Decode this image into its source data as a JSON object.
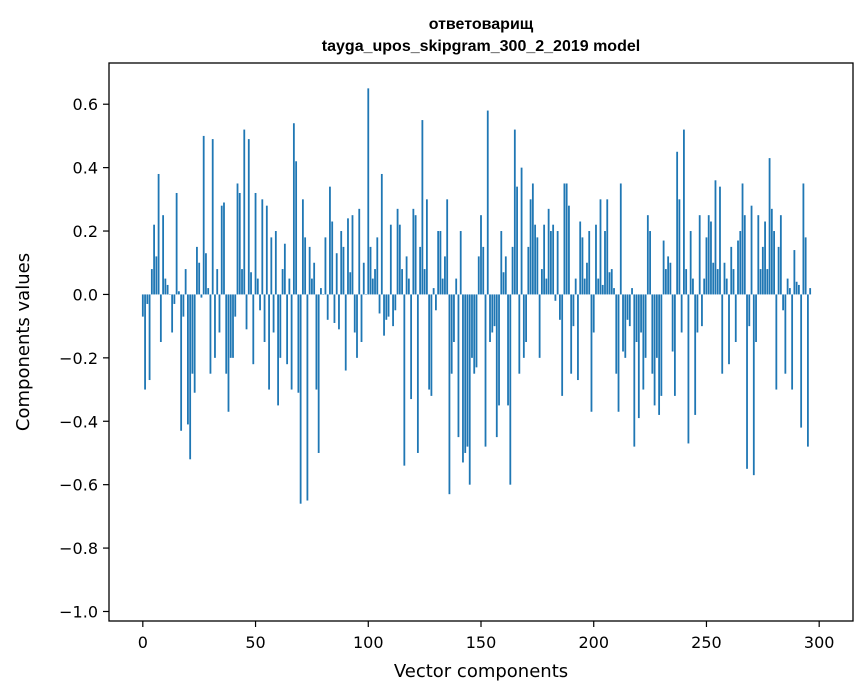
{
  "chart_data": {
    "type": "bar",
    "title": "ответоварищ",
    "subtitle": "tayga_upos_skipgram_300_2_2019 model",
    "xlabel": "Vector components",
    "ylabel": "Components values",
    "xlim": [
      -15,
      315
    ],
    "ylim": [
      -1.03,
      0.73
    ],
    "xticks": [
      0,
      50,
      100,
      150,
      200,
      250,
      300
    ],
    "yticks": [
      -1.0,
      -0.8,
      -0.6,
      -0.4,
      -0.2,
      0.0,
      0.2,
      0.4,
      0.6
    ],
    "ytick_labels": [
      "−1.0",
      "−0.8",
      "−0.6",
      "−0.4",
      "−0.2",
      "0.0",
      "0.2",
      "0.4",
      "0.6"
    ],
    "xtick_labels": [
      "0",
      "50",
      "100",
      "150",
      "200",
      "250",
      "300"
    ],
    "bar_color": "#1f77b4",
    "grid": false,
    "values": [
      -0.07,
      -0.3,
      -0.03,
      -0.27,
      0.08,
      0.22,
      0.12,
      0.38,
      -0.15,
      0.25,
      0.05,
      0.03,
      0.0,
      -0.12,
      -0.03,
      0.32,
      0.01,
      -0.43,
      -0.07,
      0.08,
      -0.41,
      -0.52,
      -0.25,
      -0.31,
      0.15,
      0.1,
      -0.01,
      0.5,
      0.13,
      0.02,
      -0.25,
      0.49,
      -0.2,
      0.08,
      -0.12,
      0.28,
      0.29,
      -0.25,
      -0.37,
      -0.2,
      -0.2,
      -0.07,
      0.35,
      0.32,
      0.08,
      0.52,
      -0.11,
      0.49,
      0.07,
      -0.22,
      0.32,
      0.05,
      -0.05,
      0.3,
      -0.15,
      0.28,
      -0.3,
      0.18,
      -0.12,
      0.2,
      -0.35,
      -0.2,
      0.08,
      0.16,
      -0.22,
      0.05,
      -0.3,
      0.54,
      0.42,
      -0.31,
      -0.66,
      0.3,
      0.18,
      -0.65,
      0.15,
      0.05,
      0.1,
      -0.3,
      -0.5,
      0.02,
      0.0,
      0.18,
      -0.08,
      0.34,
      0.23,
      -0.09,
      0.13,
      -0.11,
      0.2,
      0.15,
      -0.24,
      0.24,
      0.07,
      0.25,
      -0.12,
      -0.2,
      0.27,
      -0.15,
      0.1,
      0.0,
      0.65,
      0.15,
      0.05,
      0.08,
      0.18,
      -0.06,
      0.38,
      -0.13,
      -0.08,
      -0.07,
      0.22,
      -0.1,
      -0.05,
      0.27,
      0.22,
      0.08,
      -0.54,
      0.12,
      0.05,
      -0.33,
      0.27,
      0.25,
      -0.5,
      0.15,
      0.55,
      0.08,
      0.3,
      -0.3,
      -0.32,
      0.02,
      -0.05,
      0.2,
      0.2,
      0.05,
      0.12,
      0.3,
      -0.63,
      -0.25,
      -0.15,
      0.05,
      -0.45,
      0.2,
      -0.53,
      -0.5,
      -0.48,
      -0.6,
      -0.2,
      -0.25,
      -0.23,
      0.12,
      0.25,
      0.15,
      -0.48,
      0.58,
      -0.15,
      -0.12,
      -0.1,
      -0.45,
      -0.35,
      0.2,
      0.07,
      0.12,
      -0.35,
      -0.6,
      0.15,
      0.52,
      0.34,
      -0.25,
      0.4,
      -0.2,
      -0.15,
      0.15,
      0.3,
      0.35,
      0.22,
      0.18,
      -0.2,
      0.08,
      0.22,
      0.05,
      0.27,
      0.2,
      0.22,
      -0.02,
      0.2,
      -0.08,
      -0.32,
      0.35,
      0.35,
      0.28,
      -0.25,
      -0.1,
      0.05,
      -0.27,
      0.23,
      0.18,
      0.05,
      0.1,
      0.2,
      -0.37,
      -0.12,
      0.22,
      0.05,
      0.3,
      0.03,
      0.2,
      0.3,
      0.07,
      0.08,
      0.02,
      -0.25,
      -0.37,
      0.35,
      -0.18,
      -0.2,
      -0.08,
      -0.1,
      0.02,
      -0.48,
      -0.15,
      -0.39,
      -0.12,
      -0.3,
      -0.2,
      0.25,
      0.2,
      -0.25,
      -0.35,
      -0.2,
      -0.38,
      -0.32,
      0.17,
      0.08,
      0.12,
      0.1,
      -0.18,
      -0.32,
      0.45,
      0.3,
      -0.12,
      0.52,
      0.08,
      -0.47,
      0.2,
      0.05,
      -0.38,
      -0.12,
      0.25,
      -0.1,
      0.05,
      0.18,
      0.25,
      0.23,
      0.1,
      0.36,
      0.08,
      0.34,
      -0.25,
      0.1,
      0.05,
      -0.22,
      0.15,
      0.08,
      -0.15,
      0.17,
      0.2,
      0.35,
      0.25,
      -0.55,
      -0.1,
      0.28,
      -0.57,
      -0.15,
      0.25,
      0.08,
      0.15,
      0.23,
      0.08,
      0.43,
      0.27,
      0.2,
      -0.3,
      0.15,
      0.25,
      -0.05,
      -0.25,
      0.05,
      0.02,
      -0.3,
      0.14,
      0.04,
      0.03,
      -0.42,
      0.35,
      0.18,
      -0.48,
      0.02
    ]
  }
}
